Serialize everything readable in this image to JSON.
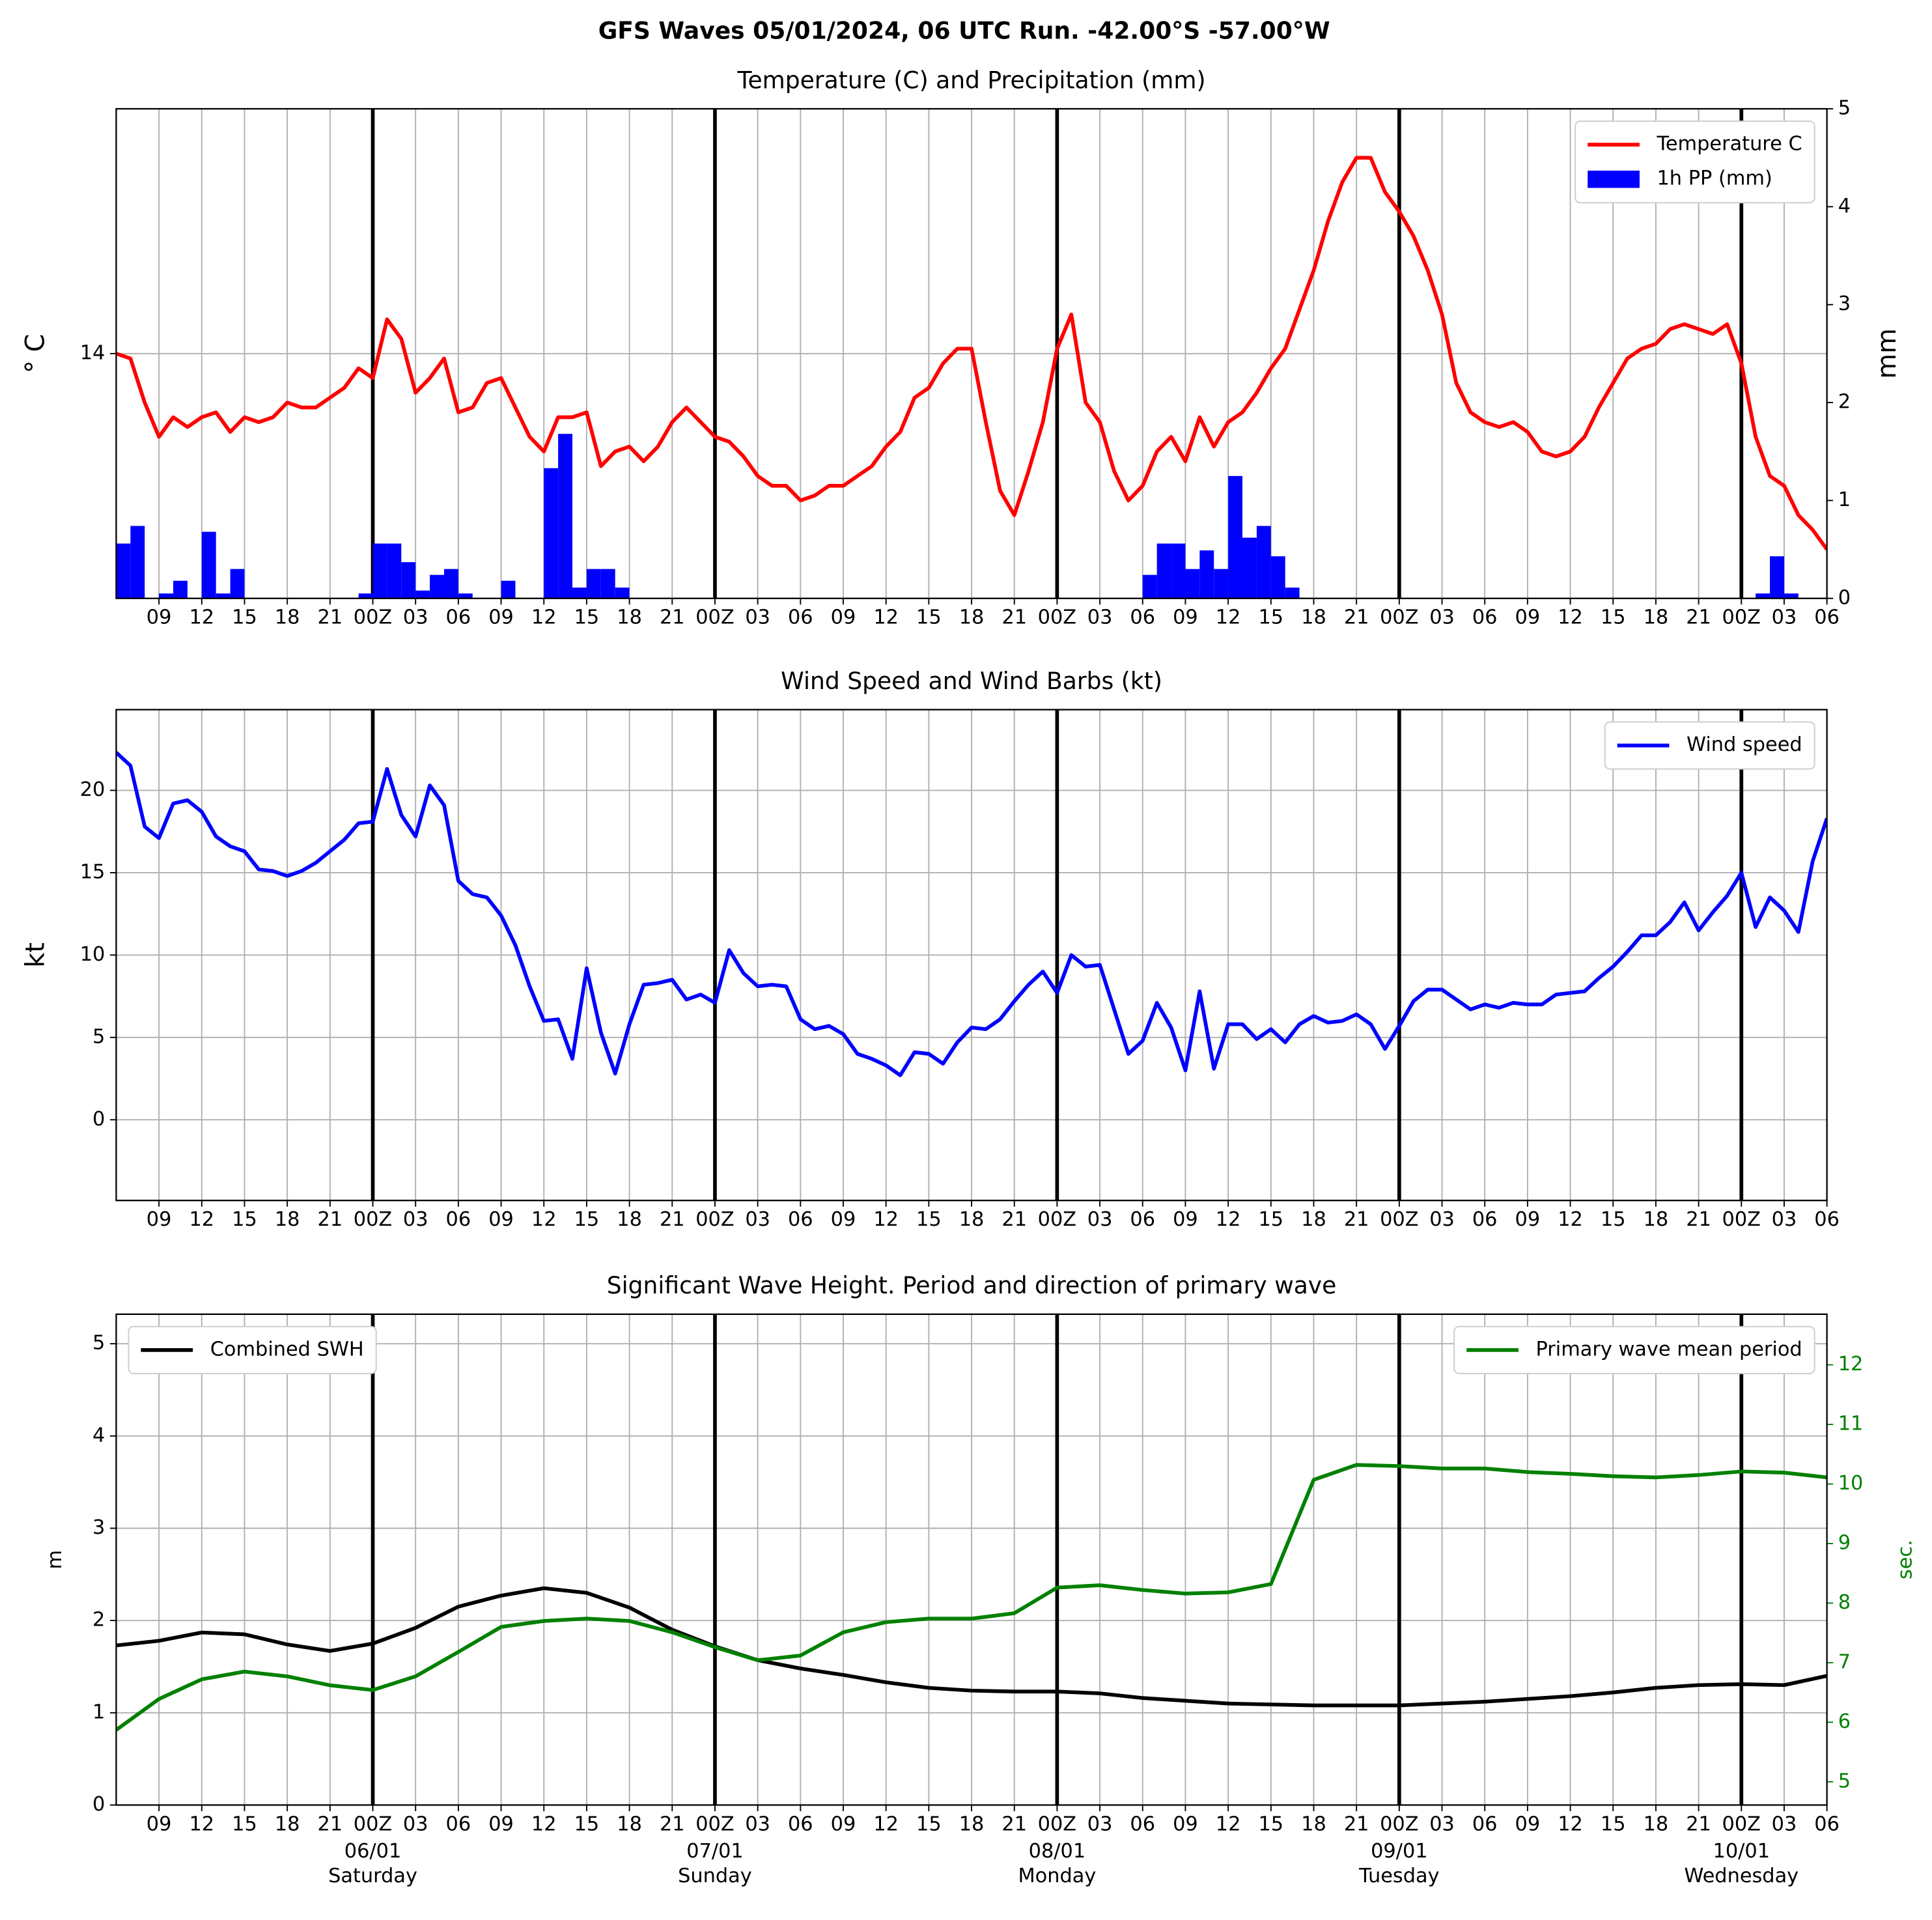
{
  "title": "GFS Waves 05/01/2024, 06 UTC Run. -42.00°S -57.00°W",
  "chart_data": [
    {
      "type": "line_bar",
      "title": "Temperature (C) and Precipitation (mm)",
      "ylabel": "° C",
      "y2label": "mm",
      "grid": true,
      "legend": "upper right",
      "xlim": [
        0,
        120
      ],
      "xticks": [
        {
          "value": 3,
          "label": "09"
        },
        {
          "value": 6,
          "label": "12"
        },
        {
          "value": 9,
          "label": "15"
        },
        {
          "value": 12,
          "label": "18"
        },
        {
          "value": 15,
          "label": "21"
        },
        {
          "value": 18,
          "label": "00Z"
        },
        {
          "value": 21,
          "label": "03"
        },
        {
          "value": 24,
          "label": "06"
        },
        {
          "value": 27,
          "label": "09"
        },
        {
          "value": 30,
          "label": "12"
        },
        {
          "value": 33,
          "label": "15"
        },
        {
          "value": 36,
          "label": "18"
        },
        {
          "value": 39,
          "label": "21"
        },
        {
          "value": 42,
          "label": "00Z"
        },
        {
          "value": 45,
          "label": "03"
        },
        {
          "value": 48,
          "label": "06"
        },
        {
          "value": 51,
          "label": "09"
        },
        {
          "value": 54,
          "label": "12"
        },
        {
          "value": 57,
          "label": "15"
        },
        {
          "value": 60,
          "label": "18"
        },
        {
          "value": 63,
          "label": "21"
        },
        {
          "value": 66,
          "label": "00Z"
        },
        {
          "value": 69,
          "label": "03"
        },
        {
          "value": 72,
          "label": "06"
        },
        {
          "value": 75,
          "label": "09"
        },
        {
          "value": 78,
          "label": "12"
        },
        {
          "value": 81,
          "label": "15"
        },
        {
          "value": 84,
          "label": "18"
        },
        {
          "value": 87,
          "label": "21"
        },
        {
          "value": 90,
          "label": "00Z"
        },
        {
          "value": 93,
          "label": "03"
        },
        {
          "value": 96,
          "label": "06"
        },
        {
          "value": 99,
          "label": "09"
        },
        {
          "value": 102,
          "label": "12"
        },
        {
          "value": 105,
          "label": "15"
        },
        {
          "value": 108,
          "label": "18"
        },
        {
          "value": 111,
          "label": "21"
        },
        {
          "value": 114,
          "label": "00Z"
        },
        {
          "value": 117,
          "label": "03"
        },
        {
          "value": 120,
          "label": "06"
        }
      ],
      "ylim": [
        9,
        19
      ],
      "yticks": [
        14
      ],
      "y2lim": [
        0,
        5
      ],
      "y2ticks": [
        0,
        1,
        2,
        3,
        4,
        5
      ],
      "x": [
        0,
        1,
        2,
        3,
        4,
        5,
        6,
        7,
        8,
        9,
        10,
        11,
        12,
        13,
        14,
        15,
        16,
        17,
        18,
        19,
        20,
        21,
        22,
        23,
        24,
        25,
        26,
        27,
        28,
        29,
        30,
        31,
        32,
        33,
        34,
        35,
        36,
        37,
        38,
        39,
        40,
        41,
        42,
        43,
        44,
        45,
        46,
        47,
        48,
        49,
        50,
        51,
        52,
        53,
        54,
        55,
        56,
        57,
        58,
        59,
        60,
        61,
        62,
        63,
        64,
        65,
        66,
        67,
        68,
        69,
        70,
        71,
        72,
        73,
        74,
        75,
        76,
        77,
        78,
        79,
        80,
        81,
        82,
        83,
        84,
        85,
        86,
        87,
        88,
        89,
        90,
        91,
        92,
        93,
        94,
        95,
        96,
        97,
        98,
        99,
        100,
        101,
        102,
        103,
        104,
        105,
        106,
        107,
        108,
        109,
        110,
        111,
        112,
        113,
        114,
        115,
        116,
        117,
        118,
        119,
        120
      ],
      "series": [
        {
          "name": "Temperature C",
          "color": "#ff0000",
          "type": "line",
          "values": [
            14.0,
            13.9,
            13.0,
            12.3,
            12.7,
            12.5,
            12.7,
            12.8,
            12.4,
            12.7,
            12.6,
            12.7,
            13.0,
            12.9,
            12.9,
            13.1,
            13.3,
            13.7,
            13.5,
            14.7,
            14.3,
            13.2,
            13.5,
            13.9,
            12.8,
            12.9,
            13.4,
            13.5,
            12.9,
            12.3,
            12.0,
            12.7,
            12.7,
            12.8,
            11.7,
            12.0,
            12.1,
            11.8,
            12.1,
            12.6,
            12.9,
            12.6,
            12.3,
            12.2,
            11.9,
            11.5,
            11.3,
            11.3,
            11.0,
            11.1,
            11.3,
            11.3,
            11.5,
            11.7,
            12.1,
            12.4,
            13.1,
            13.3,
            13.8,
            14.1,
            14.1,
            12.6,
            11.2,
            10.7,
            11.6,
            12.6,
            14.1,
            14.8,
            13.0,
            12.6,
            11.6,
            11.0,
            11.3,
            12.0,
            12.3,
            11.8,
            12.7,
            12.1,
            12.6,
            12.8,
            13.2,
            13.7,
            14.1,
            14.9,
            15.7,
            16.7,
            17.5,
            18.0,
            18.0,
            17.3,
            16.9,
            16.4,
            15.7,
            14.8,
            13.4,
            12.8,
            12.6,
            12.5,
            12.6,
            12.4,
            12.0,
            11.9,
            12.0,
            12.3,
            12.9,
            13.4,
            13.9,
            14.1,
            14.2,
            14.5,
            14.6,
            14.5,
            14.4,
            14.6,
            13.8,
            12.3,
            11.5,
            11.3,
            10.7,
            10.4,
            10.0
          ]
        },
        {
          "name": "1h PP (mm)",
          "color": "#0000ff",
          "type": "bar",
          "axis": "y2",
          "values": [
            0.56,
            0.74,
            0,
            0.05,
            0.18,
            0,
            0.68,
            0.05,
            0.3,
            0,
            0,
            0,
            0,
            0,
            0,
            0,
            0,
            0.05,
            0.56,
            0.56,
            0.37,
            0.08,
            0.24,
            0.3,
            0.05,
            0,
            0,
            0.18,
            0,
            0,
            1.33,
            1.68,
            0.11,
            0.3,
            0.3,
            0.11,
            0,
            0,
            0,
            0,
            0,
            0,
            0,
            0,
            0,
            0,
            0,
            0,
            0,
            0,
            0,
            0,
            0,
            0,
            0,
            0,
            0,
            0,
            0,
            0,
            0,
            0,
            0,
            0,
            0,
            0,
            0,
            0,
            0,
            0,
            0,
            0,
            0.24,
            0.56,
            0.56,
            0.3,
            0.49,
            0.3,
            1.25,
            0.62,
            0.74,
            0.43,
            0.11,
            0,
            0,
            0,
            0,
            0,
            0,
            0,
            0,
            0,
            0,
            0,
            0,
            0,
            0,
            0,
            0,
            0,
            0,
            0,
            0,
            0,
            0,
            0,
            0,
            0,
            0,
            0,
            0,
            0,
            0,
            0,
            0,
            0.05,
            0.43,
            0.05,
            0,
            0,
            0
          ]
        }
      ]
    },
    {
      "type": "line",
      "title": "Wind Speed and Wind Barbs (kt)",
      "ylabel": "kt",
      "grid": true,
      "legend": "upper right",
      "ylim": [
        -4.9,
        24.9
      ],
      "yticks": [
        0,
        5,
        10,
        15,
        20
      ],
      "x": [
        0,
        1,
        2,
        3,
        4,
        5,
        6,
        7,
        8,
        9,
        10,
        11,
        12,
        13,
        14,
        15,
        16,
        17,
        18,
        19,
        20,
        21,
        22,
        23,
        24,
        25,
        26,
        27,
        28,
        29,
        30,
        31,
        32,
        33,
        34,
        35,
        36,
        37,
        38,
        39,
        40,
        41,
        42,
        43,
        44,
        45,
        46,
        47,
        48,
        49,
        50,
        51,
        52,
        53,
        54,
        55,
        56,
        57,
        58,
        59,
        60,
        61,
        62,
        63,
        64,
        65,
        66,
        67,
        68,
        69,
        70,
        71,
        72,
        73,
        74,
        75,
        76,
        77,
        78,
        79,
        80,
        81,
        82,
        83,
        84,
        85,
        86,
        87,
        88,
        89,
        90,
        91,
        92,
        93,
        94,
        95,
        96,
        97,
        98,
        99,
        100,
        101,
        102,
        103,
        104,
        105,
        106,
        107,
        108,
        109,
        110,
        111,
        112,
        113,
        114,
        115,
        116,
        117,
        118,
        119,
        120
      ],
      "series": [
        {
          "name": "Wind speed",
          "color": "#0000ff",
          "type": "line",
          "values": [
            22.3,
            21.5,
            17.8,
            17.1,
            19.2,
            19.4,
            18.7,
            17.2,
            16.6,
            16.3,
            15.2,
            15.1,
            14.8,
            15.1,
            15.6,
            16.3,
            17.0,
            18.0,
            18.1,
            21.3,
            18.5,
            17.2,
            20.3,
            19.1,
            14.5,
            13.7,
            13.5,
            12.4,
            10.6,
            8.1,
            6.0,
            6.1,
            3.7,
            9.2,
            5.3,
            2.8,
            5.8,
            8.2,
            8.3,
            8.5,
            7.3,
            7.6,
            7.1,
            10.3,
            8.9,
            8.1,
            8.2,
            8.1,
            6.1,
            5.5,
            5.7,
            5.2,
            4.0,
            3.7,
            3.3,
            2.7,
            4.1,
            4.0,
            3.4,
            4.7,
            5.6,
            5.5,
            6.1,
            7.2,
            8.2,
            9.0,
            7.7,
            10.0,
            9.3,
            9.4,
            6.7,
            4.0,
            4.8,
            7.1,
            5.6,
            3.0,
            7.8,
            3.1,
            5.8,
            5.8,
            4.9,
            5.5,
            4.7,
            5.8,
            6.3,
            5.9,
            6.0,
            6.4,
            5.8,
            4.3,
            5.7,
            7.2,
            7.9,
            7.9,
            7.3,
            6.7,
            7.0,
            6.8,
            7.1,
            7.0,
            7.0,
            7.6,
            7.7,
            7.8,
            8.6,
            9.3,
            10.2,
            11.2,
            11.2,
            12.0,
            13.2,
            11.5,
            12.6,
            13.6,
            15.0,
            11.7,
            13.5,
            12.7,
            11.4,
            15.7,
            18.3
          ]
        }
      ]
    },
    {
      "type": "line",
      "title": "Significant Wave Height. Period and direction of primary wave",
      "ylabel": "m",
      "y2label": "sec.",
      "y2color": "#008000",
      "grid": true,
      "ylim": [
        0,
        5.32
      ],
      "yticks": [
        0,
        1,
        2,
        3,
        4,
        5
      ],
      "y2lim": [
        4.61,
        12.85
      ],
      "y2ticks": [
        5,
        6,
        7,
        8,
        9,
        10,
        11,
        12
      ],
      "x": [
        0,
        3,
        6,
        9,
        12,
        15,
        18,
        21,
        24,
        27,
        30,
        33,
        36,
        39,
        42,
        45,
        48,
        51,
        54,
        57,
        60,
        63,
        66,
        69,
        72,
        75,
        78,
        81,
        84,
        87,
        90,
        93,
        96,
        99,
        102,
        105,
        108,
        111,
        114,
        117,
        120
      ],
      "day_labels": [
        {
          "value": 18,
          "date": "06/01",
          "day": "Saturday"
        },
        {
          "value": 42,
          "date": "07/01",
          "day": "Sunday"
        },
        {
          "value": 66,
          "date": "08/01",
          "day": "Monday"
        },
        {
          "value": 90,
          "date": "09/01",
          "day": "Tuesday"
        },
        {
          "value": 114,
          "date": "10/01",
          "day": "Wednesday"
        }
      ],
      "series": [
        {
          "name": "Combined SWH",
          "color": "#000000",
          "type": "line",
          "legend": "upper left",
          "values": [
            1.73,
            1.78,
            1.87,
            1.85,
            1.74,
            1.67,
            1.75,
            1.92,
            2.15,
            2.27,
            2.35,
            2.3,
            2.14,
            1.9,
            1.72,
            1.57,
            1.48,
            1.41,
            1.33,
            1.27,
            1.24,
            1.23,
            1.23,
            1.21,
            1.16,
            1.13,
            1.1,
            1.09,
            1.08,
            1.08,
            1.08,
            1.1,
            1.12,
            1.15,
            1.18,
            1.22,
            1.27,
            1.3,
            1.31,
            1.3,
            1.4
          ]
        },
        {
          "name": "Primary wave mean period",
          "color": "#008000",
          "type": "line",
          "axis": "y2",
          "legend": "upper right",
          "values": [
            5.87,
            6.39,
            6.72,
            6.85,
            6.77,
            6.62,
            6.54,
            6.77,
            7.18,
            7.6,
            7.7,
            7.74,
            7.7,
            7.51,
            7.26,
            7.04,
            7.12,
            7.51,
            7.68,
            7.74,
            7.74,
            7.83,
            8.26,
            8.3,
            8.22,
            8.16,
            8.18,
            8.32,
            10.07,
            10.32,
            10.3,
            10.26,
            10.26,
            10.2,
            10.17,
            10.13,
            10.11,
            10.15,
            10.21,
            10.19,
            10.11
          ]
        }
      ]
    }
  ]
}
